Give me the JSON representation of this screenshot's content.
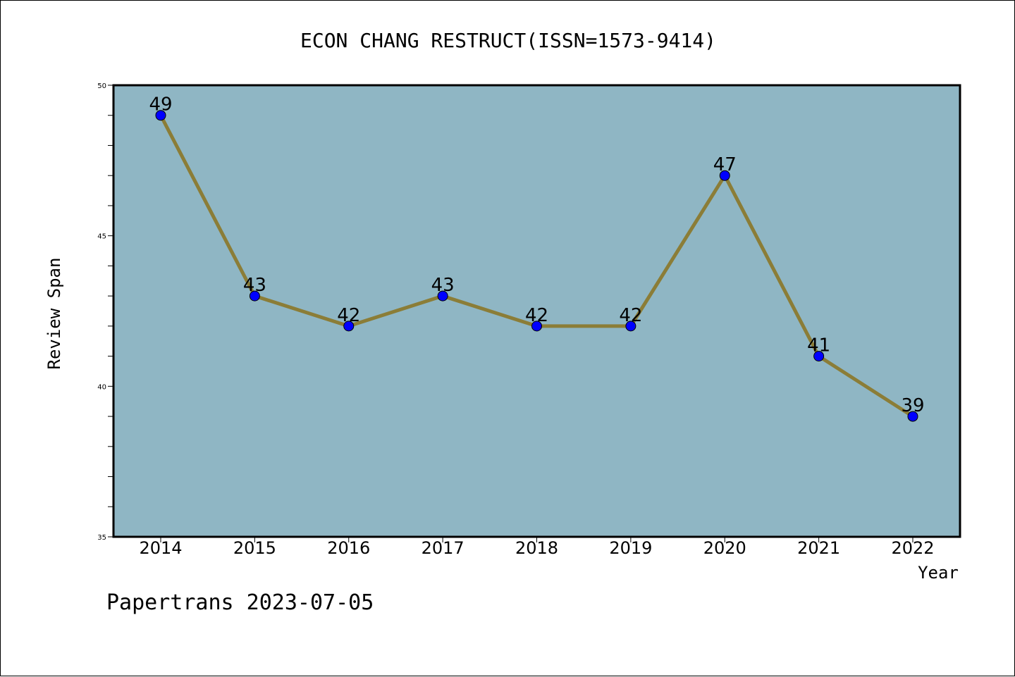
{
  "chart_data": {
    "type": "line",
    "title": "ECON CHANG RESTRUCT(ISSN=1573-9414)",
    "xlabel": "Year",
    "ylabel": "Review Span",
    "categories": [
      "2014",
      "2015",
      "2016",
      "2017",
      "2018",
      "2019",
      "2020",
      "2021",
      "2022"
    ],
    "series": [
      {
        "values": [
          49,
          43,
          42,
          43,
          42,
          42,
          47,
          41,
          39
        ]
      }
    ],
    "ylim": [
      35,
      50
    ],
    "yticks": [
      "35",
      "40",
      "45",
      "50"
    ],
    "grid": false,
    "colors": {
      "plot_background": "#8fb6c4",
      "line": "#8b7d37",
      "marker": "#0000ff"
    }
  },
  "footer": {
    "watermark": "Papertrans 2023-07-05"
  }
}
